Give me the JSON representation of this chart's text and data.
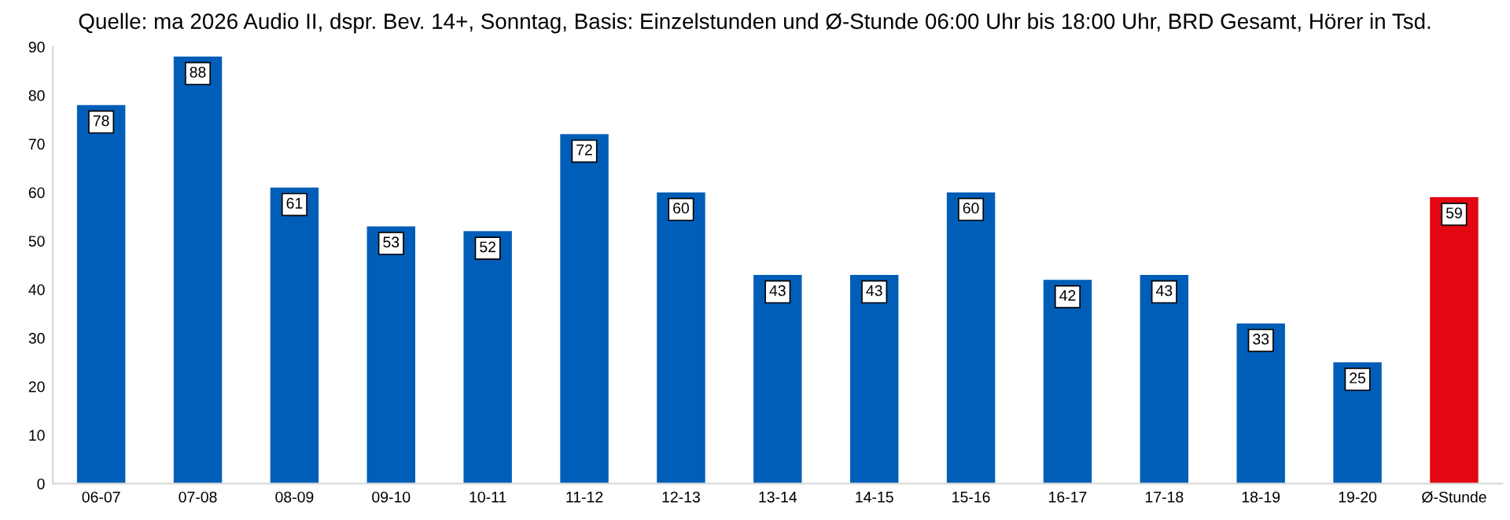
{
  "chart_data": {
    "type": "bar",
    "title": "Quelle: ma 2026 Audio II, dspr. Bev. 14+, Sonntag, Basis: Einzelstunden und Ø-Stunde 06:00 Uhr bis 18:00 Uhr, BRD Gesamt, Hörer in Tsd.",
    "categories": [
      "06-07",
      "07-08",
      "08-09",
      "09-10",
      "10-11",
      "11-12",
      "12-13",
      "13-14",
      "14-15",
      "15-16",
      "16-17",
      "17-18",
      "18-19",
      "19-20",
      "Ø-Stunde"
    ],
    "values": [
      78,
      88,
      61,
      53,
      52,
      72,
      60,
      43,
      43,
      60,
      42,
      43,
      33,
      25,
      59
    ],
    "colors": [
      "#005eb8",
      "#005eb8",
      "#005eb8",
      "#005eb8",
      "#005eb8",
      "#005eb8",
      "#005eb8",
      "#005eb8",
      "#005eb8",
      "#005eb8",
      "#005eb8",
      "#005eb8",
      "#005eb8",
      "#005eb8",
      "#e30613"
    ],
    "ylim": [
      0,
      90
    ],
    "yticks": [
      0,
      10,
      20,
      30,
      40,
      50,
      60,
      70,
      80,
      90
    ],
    "grid": false,
    "data_labels": true
  }
}
